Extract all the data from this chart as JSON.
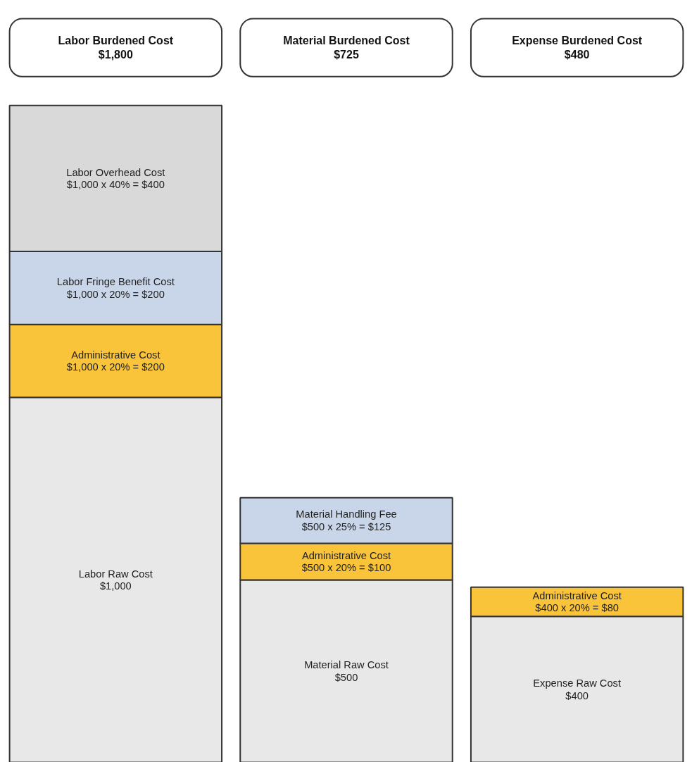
{
  "chart_data": {
    "type": "bar",
    "stacked": true,
    "grid": false,
    "tick_labels": false,
    "categories": [
      "Labor Burdened Cost\n$1,800",
      "Material Burdened Cost\n$725",
      "Expense Burdened Cost\n$480"
    ],
    "series": [
      {
        "color": "#e8e8e8",
        "values": [
          1000,
          500,
          400
        ],
        "value_labels": [
          "Labor Raw Cost\n$1,000",
          "Material Raw Cost\n$500",
          "Expense Raw Cost\n$400"
        ]
      },
      {
        "color": "#f9c33a",
        "values": [
          200,
          100,
          80
        ],
        "value_labels": [
          "Administrative Cost\n$1,000 x 20% = $200",
          "Administrative Cost\n$500 x 20% = $100",
          "Administrative Cost\n$400 x 20% = $80"
        ]
      },
      {
        "color": "#c9d6ea",
        "values": [
          200,
          125,
          null
        ],
        "value_labels": [
          "Labor Fringe Benefit Cost\n$1,000 x 20% = $200",
          "Material Handling Fee\n$500 x 25% = $125",
          null
        ]
      },
      {
        "color": "#d9d9d9",
        "values": [
          400,
          null,
          null
        ],
        "value_labels": [
          "Labor Overhead Cost\n$1,000 x 40% = $400",
          null,
          null
        ]
      }
    ]
  }
}
